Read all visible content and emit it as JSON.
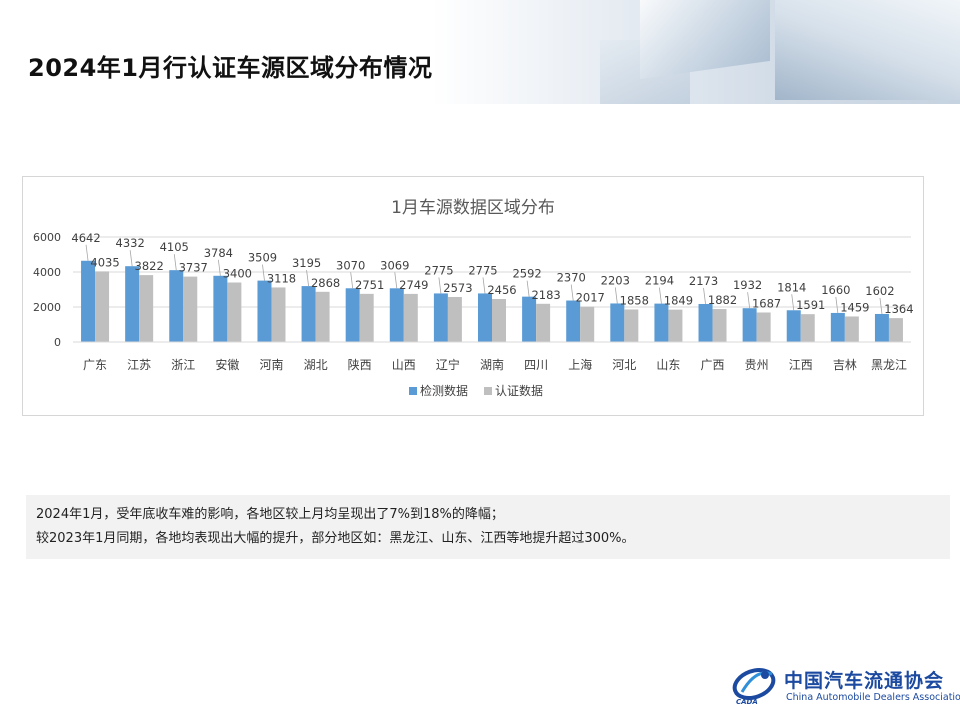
{
  "page": {
    "title": "2024年1月行认证车源区域分布情况"
  },
  "chart_data": {
    "type": "bar",
    "title": "1月车源数据区域分布",
    "xlabel": "",
    "ylabel": "",
    "ylim": [
      0,
      6000
    ],
    "yticks": [
      "0",
      "2000",
      "4000",
      "6000"
    ],
    "grid": true,
    "legend_position": "bottom",
    "categories": [
      "广东",
      "江苏",
      "浙江",
      "安徽",
      "河南",
      "湖北",
      "陕西",
      "山西",
      "辽宁",
      "湖南",
      "四川",
      "上海",
      "河北",
      "山东",
      "广西",
      "贵州",
      "江西",
      "吉林",
      "黑龙江"
    ],
    "series": [
      {
        "name": "检测数据",
        "color": "#5b9bd5",
        "values": [
          4642,
          4332,
          4105,
          3784,
          3509,
          3195,
          3070,
          3069,
          2775,
          2775,
          2592,
          2370,
          2203,
          2194,
          2173,
          1932,
          1814,
          1660,
          1602
        ]
      },
      {
        "name": "认证数据",
        "color": "#bfbfbf",
        "values": [
          4035,
          3822,
          3737,
          3400,
          3118,
          2868,
          2751,
          2749,
          2573,
          2456,
          2183,
          2017,
          1858,
          1849,
          1882,
          1687,
          1591,
          1459,
          1364
        ]
      }
    ]
  },
  "notes": [
    "2024年1月，受年底收车难的影响，各地区较上月均呈现出了7%到18%的降幅；",
    "较2023年1月同期，各地均表现出大幅的提升，部分地区如：黑龙江、山东、江西等地提升超过300%。"
  ],
  "logo": {
    "name_cn": "中国汽车流通协会",
    "name_en": "China Automobile Dealers Association",
    "abbr": "CADA"
  }
}
